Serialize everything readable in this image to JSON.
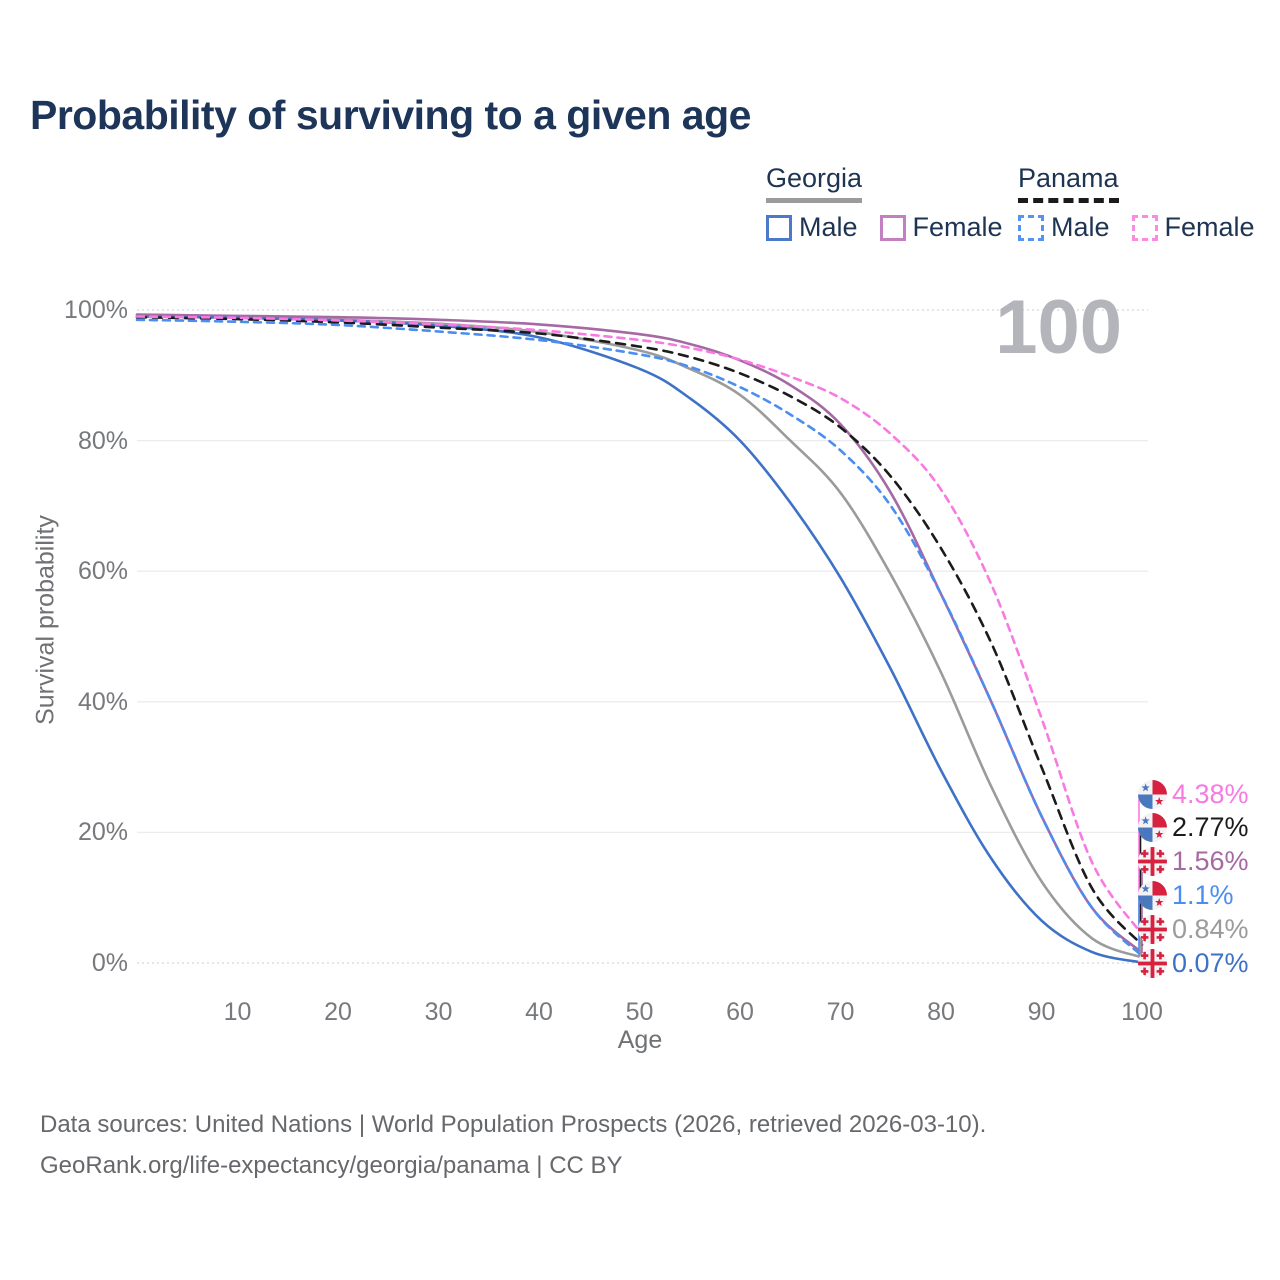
{
  "title": "Probability of surviving to a given age",
  "watermark": "100",
  "legend": {
    "groups": [
      {
        "label": "Georgia",
        "underline_color": "#9b9b9b",
        "underline_style": "solid",
        "items": [
          {
            "label": "Male",
            "swatch_color": "#4a7ac9",
            "dashed": false
          },
          {
            "label": "Female",
            "swatch_color": "#c47fc2",
            "dashed": false
          }
        ]
      },
      {
        "label": "Panama",
        "underline_color": "#1b1b1b",
        "underline_style": "dashed",
        "items": [
          {
            "label": "Male",
            "swatch_color": "#5593f2",
            "dashed": true
          },
          {
            "label": "Female",
            "swatch_color": "#fb8ae4",
            "dashed": true
          }
        ]
      }
    ]
  },
  "footer": {
    "line1": "Data sources: United Nations | World Population Prospects (2026, retrieved 2026-03-10).",
    "line2": "GeoRank.org/life-expectancy/georgia/panama | CC BY"
  },
  "colors": {
    "title_text": "#1d3558",
    "legend_text": "#1e3453",
    "tick_text": "#77797d",
    "axis_title_text": "#6f7175",
    "watermark_text": "#b3b5ba",
    "footer_text": "#66686c",
    "grid_solid": "#ececef",
    "grid_dotted": "#d7d7db",
    "flag_red": "#d6213f",
    "flag_blue": "#4a78bf",
    "flag_bg": "#f3f3f5"
  },
  "chart_data": {
    "type": "line",
    "title": "Probability of surviving to a given age",
    "xlabel": "Age",
    "ylabel": "Survival probability",
    "xlim": [
      0,
      100
    ],
    "ylim": [
      0,
      100
    ],
    "grid": true,
    "legend_position": "top-right",
    "x_ticks": [
      10,
      20,
      30,
      40,
      50,
      60,
      70,
      80,
      90,
      100
    ],
    "y_ticks": [
      0,
      20,
      40,
      60,
      80,
      100
    ],
    "y_tick_labels": [
      "0%",
      "20%",
      "40%",
      "60%",
      "80%",
      "100%"
    ],
    "highlighted_age": 100,
    "ages": [
      0,
      10,
      20,
      30,
      40,
      50,
      55,
      60,
      65,
      70,
      75,
      80,
      85,
      90,
      95,
      100
    ],
    "series": [
      {
        "name": "Georgia Male",
        "country": "Georgia",
        "sex": "Male",
        "style": "solid",
        "color": "#3e72c6",
        "flag": "georgia",
        "end_label": "0.07%",
        "values": [
          99.0,
          98.8,
          98.4,
          97.6,
          95.8,
          91.0,
          86.5,
          80.0,
          70.5,
          59.0,
          45.0,
          29.5,
          16.0,
          6.5,
          1.7,
          0.07
        ]
      },
      {
        "name": "Georgia Female",
        "country": "Georgia",
        "sex": "Female",
        "style": "solid",
        "color": "#a569a3",
        "flag": "georgia",
        "end_label": "1.56%",
        "values": [
          99.3,
          99.1,
          98.9,
          98.5,
          97.8,
          96.3,
          94.8,
          92.3,
          88.5,
          82.5,
          72.0,
          56.5,
          40.0,
          22.5,
          8.5,
          1.56
        ]
      },
      {
        "name": "Georgia Total",
        "country": "Georgia",
        "sex": "Total",
        "style": "solid",
        "color": "#9b9b9b",
        "flag": "georgia",
        "end_label": "0.84%",
        "values": [
          99.1,
          98.9,
          98.5,
          97.9,
          96.6,
          93.8,
          91.0,
          87.0,
          80.0,
          72.0,
          59.5,
          44.5,
          27.0,
          12.5,
          3.8,
          0.84
        ]
      },
      {
        "name": "Panama Male",
        "country": "Panama",
        "sex": "Male",
        "style": "dashed",
        "color": "#4b8ef0",
        "flag": "panama",
        "end_label": "1.1%",
        "values": [
          98.5,
          98.2,
          97.7,
          96.7,
          95.4,
          93.2,
          91.3,
          88.2,
          84.0,
          78.5,
          70.0,
          56.5,
          40.0,
          22.5,
          8.5,
          1.1
        ]
      },
      {
        "name": "Panama Female",
        "country": "Panama",
        "sex": "Female",
        "style": "dashed",
        "color": "#f87ae1",
        "flag": "panama",
        "end_label": "4.38%",
        "values": [
          99.0,
          98.8,
          98.4,
          97.8,
          96.9,
          95.4,
          94.2,
          92.4,
          89.8,
          86.5,
          81.0,
          72.5,
          58.0,
          37.5,
          15.5,
          4.38
        ]
      },
      {
        "name": "Panama Total",
        "country": "Panama",
        "sex": "Total",
        "style": "dashed",
        "color": "#1b1b1b",
        "flag": "panama",
        "end_label": "2.77%",
        "values": [
          98.9,
          98.6,
          98.1,
          97.3,
          96.4,
          94.4,
          92.8,
          90.3,
          86.8,
          82.0,
          74.5,
          63.5,
          49.0,
          30.0,
          11.5,
          2.77
        ]
      }
    ],
    "end_label_order": [
      "Panama Female",
      "Panama Total",
      "Georgia Female",
      "Panama Male",
      "Georgia Total",
      "Georgia Male"
    ]
  }
}
